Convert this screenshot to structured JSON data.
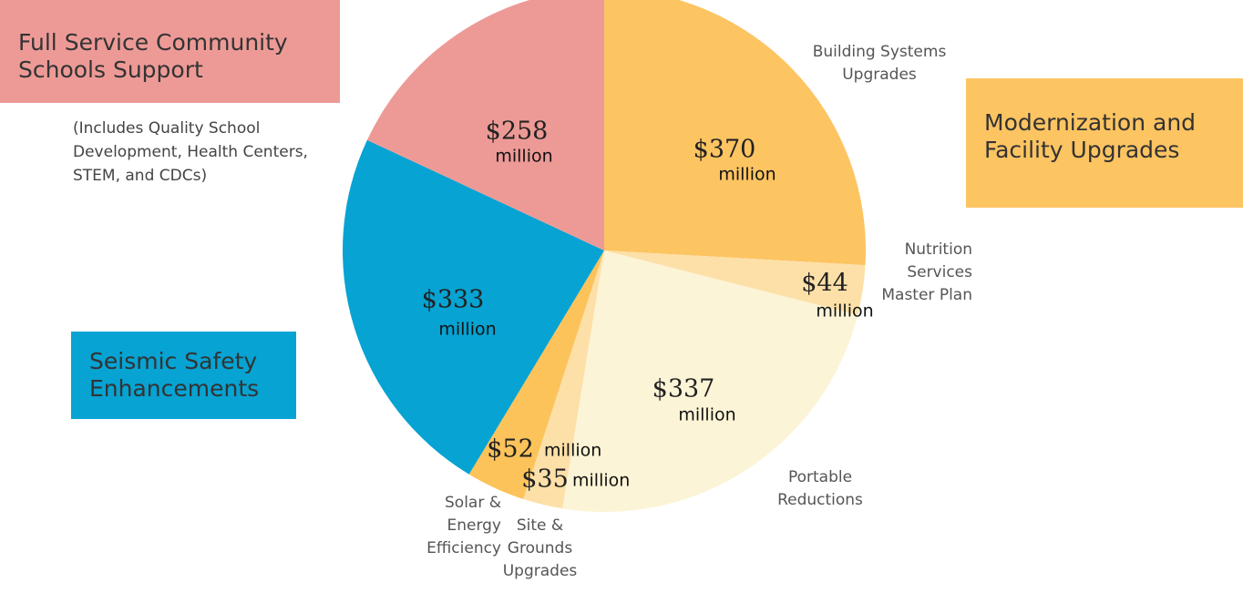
{
  "chart_data": {
    "type": "pie",
    "categories": [
      "Building Systems Upgrades",
      "Nutrition Services Master Plan",
      "Portable Reductions",
      "Site & Grounds Upgrades",
      "Solar & Energy Efficiency",
      null,
      null
    ],
    "values": [
      370,
      44,
      337,
      35,
      52,
      333,
      258
    ],
    "value_labels": [
      "$370",
      "$44",
      "$337",
      "$35",
      "$52",
      "$333",
      "$258"
    ],
    "value_unit": "million",
    "colors": [
      "#fdc462",
      "#fde0a8",
      "#fcf4d6",
      "#fde0a8",
      "#fcc35a",
      "#06a3d3",
      "#ed9a97"
    ],
    "groups": [
      {
        "label": "Full Service Community Schools Support",
        "color": "#ed9a97",
        "note": "(Includes Quality School Development, Health Centers, STEM, and CDCs)"
      },
      {
        "label": "Modernization and Facility Upgrades",
        "color": "#fdc462"
      },
      {
        "label": "Seismic Safety Enhancements",
        "color": "#06a3d3"
      }
    ]
  }
}
